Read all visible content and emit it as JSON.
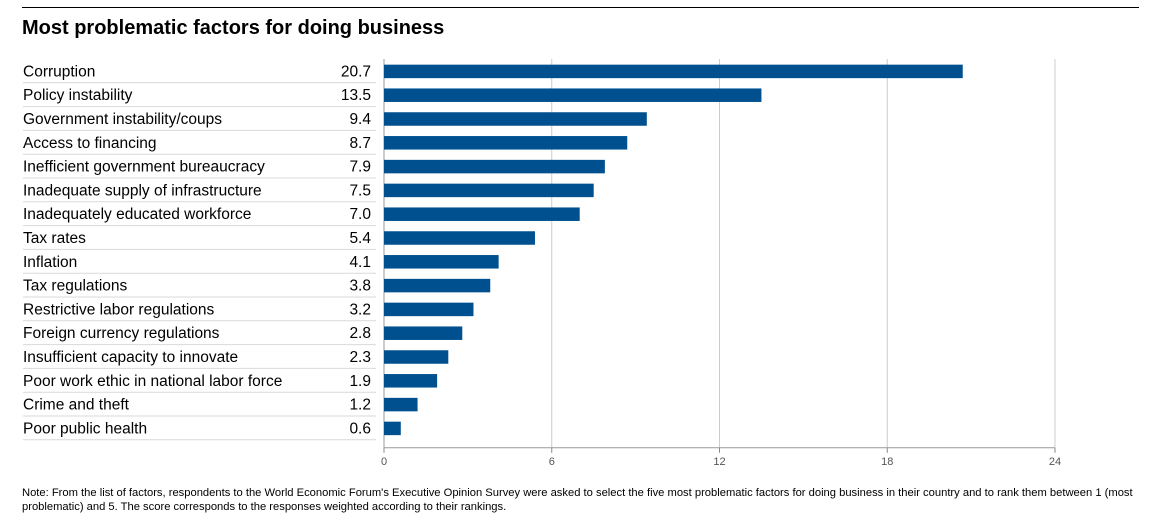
{
  "title": "Most problematic factors for doing business",
  "note": "Note: From the list of factors, respondents to the World Economic Forum's Executive Opinion Survey were asked to select the five most problematic factors for doing business in their country and to rank them between 1 (most problematic) and 5. The score corresponds to the responses weighted according to their rankings.",
  "colors": {
    "bar": "#00508f",
    "grid": "#cccccc",
    "row_rule": "#d9d9d9",
    "text": "#000000",
    "tick": "#555555"
  },
  "chart_data": {
    "type": "bar",
    "orientation": "horizontal",
    "categories": [
      "Corruption",
      "Policy instability",
      "Government instability/coups",
      "Access to financing",
      "Inefficient government bureaucracy",
      "Inadequate supply of infrastructure",
      "Inadequately educated workforce",
      "Tax rates",
      "Inflation",
      "Tax regulations",
      "Restrictive labor regulations",
      "Foreign currency regulations",
      "Insufficient capacity to innovate",
      "Poor work ethic in national labor force",
      "Crime and theft",
      "Poor public health"
    ],
    "values": [
      20.7,
      13.5,
      9.4,
      8.7,
      7.9,
      7.5,
      7.0,
      5.4,
      4.1,
      3.8,
      3.2,
      2.8,
      2.3,
      1.9,
      1.2,
      0.6
    ],
    "value_labels": [
      "20.7",
      "13.5",
      "9.4",
      "8.7",
      "7.9",
      "7.5",
      "7.0",
      "5.4",
      "4.1",
      "3.8",
      "3.2",
      "2.8",
      "2.3",
      "1.9",
      "1.2",
      "0.6"
    ],
    "xlim": [
      0,
      24
    ],
    "xticks": [
      0,
      6,
      12,
      18,
      24
    ],
    "grid": true,
    "title": "Most problematic factors for doing business",
    "xlabel": "",
    "ylabel": ""
  }
}
